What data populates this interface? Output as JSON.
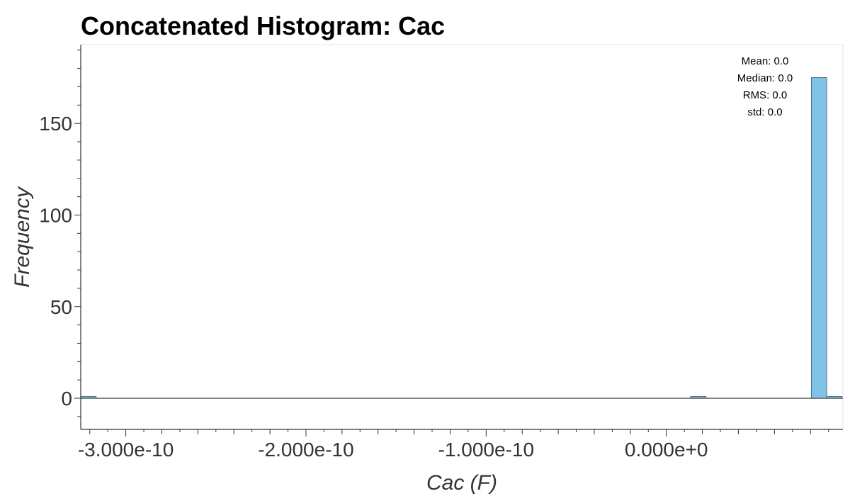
{
  "chart_data": {
    "type": "bar",
    "title": "Concatenated Histogram: Cac",
    "xlabel": "Cac (F)",
    "ylabel": "Frequency",
    "xlim": [
      -3.25e-10,
      9.8e-11
    ],
    "ylim": [
      -17,
      193
    ],
    "x_ticks": [
      {
        "value": -3e-10,
        "label": "-3.000e-10"
      },
      {
        "value": -2e-10,
        "label": "-2.000e-10"
      },
      {
        "value": -1e-10,
        "label": "-1.000e-10"
      },
      {
        "value": 0.0,
        "label": "0.000e+0"
      }
    ],
    "y_ticks": [
      {
        "value": 0,
        "label": "0"
      },
      {
        "value": 50,
        "label": "50"
      },
      {
        "value": 100,
        "label": "100"
      },
      {
        "value": 150,
        "label": "150"
      }
    ],
    "bin_width": 8.5e-12,
    "bins": [
      {
        "x0": -3.25e-10,
        "count": 1
      },
      {
        "x0": 1.35e-11,
        "count": 1
      },
      {
        "x0": 8.05e-11,
        "count": 175
      },
      {
        "x0": 8.9e-11,
        "count": 1
      }
    ],
    "bar_color": "#7fc4e6",
    "bar_edge_color": "#4d6f80",
    "grid": false,
    "legend": "none",
    "stats": [
      {
        "label": "Mean",
        "value": "0.0"
      },
      {
        "label": "Median",
        "value": "0.0"
      },
      {
        "label": "RMS",
        "value": "0.0"
      },
      {
        "label": "std",
        "value": "0.0"
      }
    ]
  }
}
